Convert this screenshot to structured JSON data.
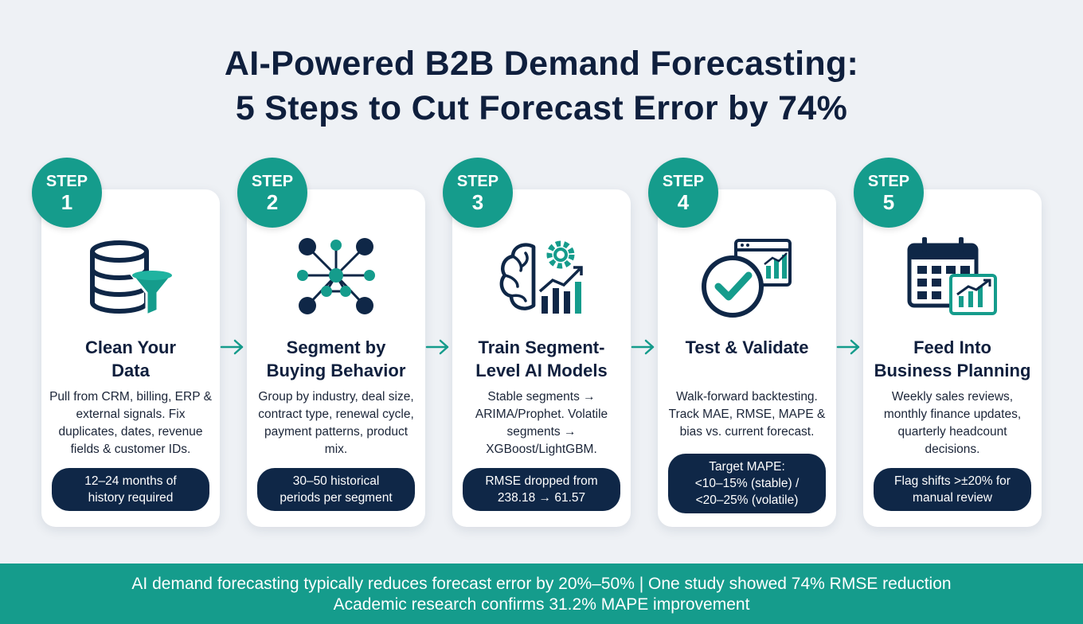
{
  "title": {
    "line1": "AI-Powered B2B Demand Forecasting:",
    "line2": "5 Steps to Cut Forecast Error by 74%"
  },
  "steps": [
    {
      "label": "STEP",
      "number": "1",
      "title_lines": [
        "Clean Your",
        "Data"
      ],
      "body": "Pull from CRM, billing, ERP & external signals. Fix duplicates, dates, revenue fields & customer IDs.",
      "pill_lines": [
        "12–24 months of",
        "history required"
      ],
      "icon": "database-filter-icon"
    },
    {
      "label": "STEP",
      "number": "2",
      "title_lines": [
        "Segment by",
        "Buying Behavior"
      ],
      "body": "Group by industry, deal size, contract type, renewal cycle, payment patterns, product mix.",
      "pill_lines": [
        "30–50 historical",
        "periods per segment"
      ],
      "icon": "network-nodes-icon"
    },
    {
      "label": "STEP",
      "number": "3",
      "title_lines": [
        "Train Segment-",
        "Level AI Models"
      ],
      "body": "Stable segments → ARIMA/Prophet. Volatile segments → XGBoost/LightGBM.",
      "pill_lines": [
        "RMSE dropped from",
        "238.18 → 61.57"
      ],
      "icon": "brain-gear-chart-icon"
    },
    {
      "label": "STEP",
      "number": "4",
      "title_lines": [
        "Test & Validate"
      ],
      "body": "Walk-forward backtesting. Track MAE, RMSE, MAPE & bias vs. current forecast.",
      "pill_lines": [
        "Target MAPE:",
        "<10–15% (stable) /",
        "<20–25% (volatile)"
      ],
      "icon": "check-dashboard-icon"
    },
    {
      "label": "STEP",
      "number": "5",
      "title_lines": [
        "Feed Into",
        "Business Planning"
      ],
      "body": "Weekly sales reviews, monthly finance updates, quarterly headcount decisions.",
      "pill_lines": [
        "Flag shifts >±20% for",
        "manual review"
      ],
      "icon": "calendar-chart-icon"
    }
  ],
  "arrow_icon": "arrow-right-icon",
  "footer": {
    "line1": "AI demand forecasting typically reduces forecast error by 20%–50% | One study showed 74% RMSE reduction",
    "line2": "Academic research confirms 31.2% MAPE improvement"
  },
  "colors": {
    "teal": "#159c8c",
    "navy": "#0f2747",
    "background": "#eef1f5"
  }
}
